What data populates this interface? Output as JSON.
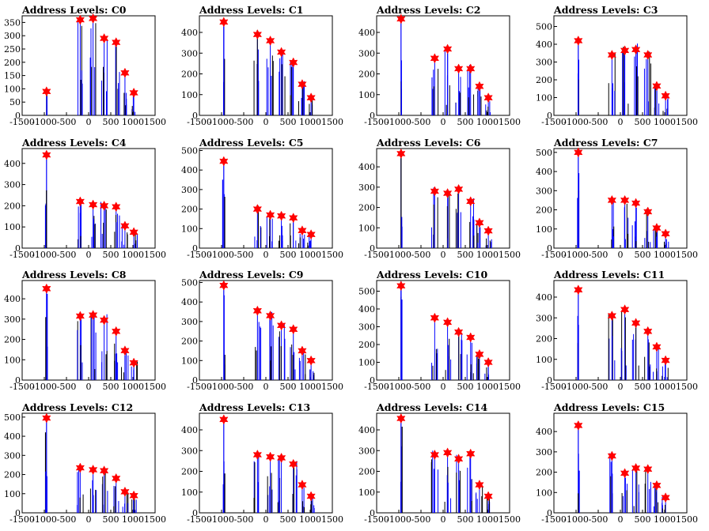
{
  "figure": {
    "x_ticks": [
      "-1500",
      "-1000",
      "-500",
      "0",
      "500",
      "1000",
      "1500"
    ],
    "x_range": [
      -1500,
      1500
    ],
    "colors": {
      "blue": "#0000ff",
      "black": "#000000",
      "marker": "#ff0000"
    }
  },
  "chart_data": [
    {
      "type": "bar",
      "title": "Address Levels: C0",
      "yticks": [
        0,
        50,
        100,
        150,
        200,
        250,
        300,
        350
      ],
      "ylim": [
        0,
        375
      ],
      "peaks": [
        {
          "x": -950,
          "y": 90
        },
        {
          "x": -190,
          "y": 360
        },
        {
          "x": 100,
          "y": 365
        },
        {
          "x": 350,
          "y": 290
        },
        {
          "x": 620,
          "y": 275
        },
        {
          "x": 820,
          "y": 160
        },
        {
          "x": 1020,
          "y": 85
        }
      ]
    },
    {
      "type": "bar",
      "title": "Address Levels: C1",
      "yticks": [
        0,
        100,
        200,
        300,
        400
      ],
      "ylim": [
        0,
        480
      ],
      "peaks": [
        {
          "x": -950,
          "y": 450
        },
        {
          "x": -190,
          "y": 390
        },
        {
          "x": 100,
          "y": 360
        },
        {
          "x": 350,
          "y": 305
        },
        {
          "x": 620,
          "y": 255
        },
        {
          "x": 820,
          "y": 150
        },
        {
          "x": 1020,
          "y": 85
        }
      ]
    },
    {
      "type": "bar",
      "title": "Address Levels: C2",
      "yticks": [
        0,
        100,
        200,
        300,
        400
      ],
      "ylim": [
        0,
        480
      ],
      "peaks": [
        {
          "x": -950,
          "y": 465
        },
        {
          "x": -190,
          "y": 275
        },
        {
          "x": 100,
          "y": 320
        },
        {
          "x": 350,
          "y": 225
        },
        {
          "x": 620,
          "y": 225
        },
        {
          "x": 820,
          "y": 140
        },
        {
          "x": 1020,
          "y": 85
        }
      ]
    },
    {
      "type": "bar",
      "title": "Address Levels: C3",
      "yticks": [
        0,
        100,
        200,
        300,
        400,
        500
      ],
      "ylim": [
        0,
        560
      ],
      "peaks": [
        {
          "x": -950,
          "y": 420
        },
        {
          "x": -190,
          "y": 340
        },
        {
          "x": 100,
          "y": 365
        },
        {
          "x": 350,
          "y": 370
        },
        {
          "x": 620,
          "y": 340
        },
        {
          "x": 820,
          "y": 165
        },
        {
          "x": 1020,
          "y": 110
        }
      ]
    },
    {
      "type": "bar",
      "title": "Address Levels: C4",
      "yticks": [
        0,
        100,
        200,
        300,
        400
      ],
      "ylim": [
        0,
        470
      ],
      "peaks": [
        {
          "x": -950,
          "y": 440
        },
        {
          "x": -190,
          "y": 220
        },
        {
          "x": 100,
          "y": 205
        },
        {
          "x": 350,
          "y": 200
        },
        {
          "x": 620,
          "y": 195
        },
        {
          "x": 820,
          "y": 105
        },
        {
          "x": 1020,
          "y": 75
        }
      ]
    },
    {
      "type": "bar",
      "title": "Address Levels: C5",
      "yticks": [
        0,
        100,
        200,
        300,
        400,
        500
      ],
      "ylim": [
        0,
        510
      ],
      "peaks": [
        {
          "x": -950,
          "y": 445
        },
        {
          "x": -190,
          "y": 200
        },
        {
          "x": 100,
          "y": 170
        },
        {
          "x": 350,
          "y": 165
        },
        {
          "x": 620,
          "y": 155
        },
        {
          "x": 820,
          "y": 90
        },
        {
          "x": 1020,
          "y": 70
        }
      ]
    },
    {
      "type": "bar",
      "title": "Address Levels: C6",
      "yticks": [
        0,
        100,
        200,
        300,
        400
      ],
      "ylim": [
        0,
        490
      ],
      "peaks": [
        {
          "x": -950,
          "y": 465
        },
        {
          "x": -190,
          "y": 280
        },
        {
          "x": 100,
          "y": 270
        },
        {
          "x": 350,
          "y": 290
        },
        {
          "x": 620,
          "y": 230
        },
        {
          "x": 820,
          "y": 125
        },
        {
          "x": 1020,
          "y": 85
        }
      ]
    },
    {
      "type": "bar",
      "title": "Address Levels: C7",
      "yticks": [
        0,
        100,
        200,
        300,
        400,
        500
      ],
      "ylim": [
        0,
        520
      ],
      "peaks": [
        {
          "x": -950,
          "y": 500
        },
        {
          "x": -190,
          "y": 250
        },
        {
          "x": 100,
          "y": 250
        },
        {
          "x": 350,
          "y": 235
        },
        {
          "x": 620,
          "y": 190
        },
        {
          "x": 820,
          "y": 105
        },
        {
          "x": 1020,
          "y": 75
        }
      ]
    },
    {
      "type": "bar",
      "title": "Address Levels: C8",
      "yticks": [
        0,
        100,
        200,
        300,
        400
      ],
      "ylim": [
        0,
        490
      ],
      "peaks": [
        {
          "x": -950,
          "y": 450
        },
        {
          "x": -190,
          "y": 315
        },
        {
          "x": 100,
          "y": 320
        },
        {
          "x": 350,
          "y": 295
        },
        {
          "x": 620,
          "y": 240
        },
        {
          "x": 820,
          "y": 145
        },
        {
          "x": 1020,
          "y": 85
        }
      ]
    },
    {
      "type": "bar",
      "title": "Address Levels: C9",
      "yticks": [
        0,
        100,
        200,
        300,
        400,
        500
      ],
      "ylim": [
        0,
        510
      ],
      "peaks": [
        {
          "x": -950,
          "y": 485
        },
        {
          "x": -190,
          "y": 355
        },
        {
          "x": 100,
          "y": 330
        },
        {
          "x": 350,
          "y": 280
        },
        {
          "x": 620,
          "y": 260
        },
        {
          "x": 820,
          "y": 150
        },
        {
          "x": 1020,
          "y": 100
        }
      ]
    },
    {
      "type": "bar",
      "title": "Address Levels: C10",
      "yticks": [
        0,
        100,
        200,
        300,
        400,
        500
      ],
      "ylim": [
        0,
        560
      ],
      "peaks": [
        {
          "x": -950,
          "y": 530
        },
        {
          "x": -190,
          "y": 350
        },
        {
          "x": 100,
          "y": 325
        },
        {
          "x": 350,
          "y": 270
        },
        {
          "x": 620,
          "y": 240
        },
        {
          "x": 820,
          "y": 145
        },
        {
          "x": 1020,
          "y": 100
        }
      ]
    },
    {
      "type": "bar",
      "title": "Address Levels: C11",
      "yticks": [
        0,
        100,
        200,
        300,
        400
      ],
      "ylim": [
        0,
        480
      ],
      "peaks": [
        {
          "x": -950,
          "y": 435
        },
        {
          "x": -190,
          "y": 310
        },
        {
          "x": 100,
          "y": 340
        },
        {
          "x": 350,
          "y": 275
        },
        {
          "x": 620,
          "y": 235
        },
        {
          "x": 820,
          "y": 160
        },
        {
          "x": 1020,
          "y": 95
        }
      ]
    },
    {
      "type": "bar",
      "title": "Address Levels: C12",
      "yticks": [
        0,
        100,
        200,
        300,
        400,
        500
      ],
      "ylim": [
        0,
        520
      ],
      "peaks": [
        {
          "x": -950,
          "y": 495
        },
        {
          "x": -190,
          "y": 235
        },
        {
          "x": 100,
          "y": 225
        },
        {
          "x": 350,
          "y": 220
        },
        {
          "x": 620,
          "y": 180
        },
        {
          "x": 820,
          "y": 110
        },
        {
          "x": 1020,
          "y": 90
        }
      ]
    },
    {
      "type": "bar",
      "title": "Address Levels: C13",
      "yticks": [
        0,
        100,
        200,
        300,
        400
      ],
      "ylim": [
        0,
        480
      ],
      "peaks": [
        {
          "x": -950,
          "y": 450
        },
        {
          "x": -190,
          "y": 280
        },
        {
          "x": 100,
          "y": 270
        },
        {
          "x": 350,
          "y": 265
        },
        {
          "x": 620,
          "y": 235
        },
        {
          "x": 820,
          "y": 135
        },
        {
          "x": 1020,
          "y": 80
        }
      ]
    },
    {
      "type": "bar",
      "title": "Address Levels: C14",
      "yticks": [
        0,
        100,
        200,
        300,
        400
      ],
      "ylim": [
        0,
        480
      ],
      "peaks": [
        {
          "x": -950,
          "y": 455
        },
        {
          "x": -190,
          "y": 280
        },
        {
          "x": 100,
          "y": 290
        },
        {
          "x": 350,
          "y": 260
        },
        {
          "x": 620,
          "y": 285
        },
        {
          "x": 820,
          "y": 135
        },
        {
          "x": 1020,
          "y": 80
        }
      ]
    },
    {
      "type": "bar",
      "title": "Address Levels: C15",
      "yticks": [
        0,
        100,
        200,
        300,
        400
      ],
      "ylim": [
        0,
        490
      ],
      "peaks": [
        {
          "x": -950,
          "y": 430
        },
        {
          "x": -190,
          "y": 280
        },
        {
          "x": 100,
          "y": 195
        },
        {
          "x": 350,
          "y": 220
        },
        {
          "x": 620,
          "y": 215
        },
        {
          "x": 820,
          "y": 135
        },
        {
          "x": 1020,
          "y": 75
        }
      ]
    }
  ]
}
